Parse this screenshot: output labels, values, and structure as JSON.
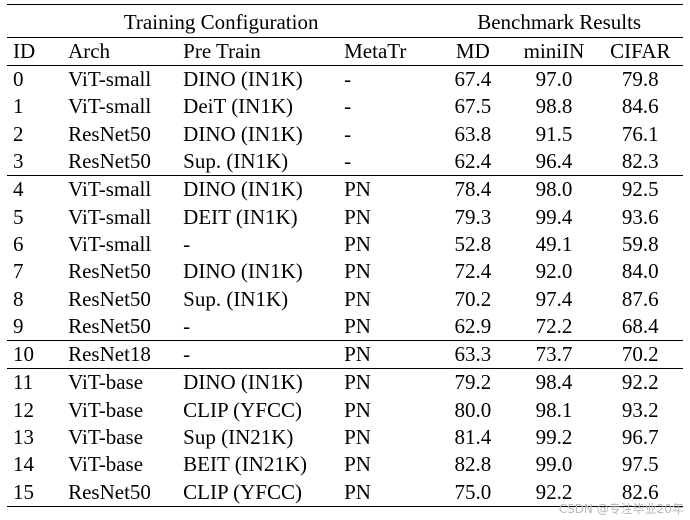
{
  "headers": {
    "group_config": "Training Configuration",
    "group_bench": "Benchmark Results",
    "columns": [
      "ID",
      "Arch",
      "Pre Train",
      "MetaTr",
      "MD",
      "miniIN",
      "CIFAR"
    ]
  },
  "rows": [
    [
      "0",
      "ViT-small",
      "DINO (IN1K)",
      "-",
      "67.4",
      "97.0",
      "79.8"
    ],
    [
      "1",
      "ViT-small",
      "DeiT (IN1K)",
      "-",
      "67.5",
      "98.8",
      "84.6"
    ],
    [
      "2",
      "ResNet50",
      "DINO (IN1K)",
      "-",
      "63.8",
      "91.5",
      "76.1"
    ],
    [
      "3",
      "ResNet50",
      "Sup. (IN1K)",
      "-",
      "62.4",
      "96.4",
      "82.3"
    ],
    [
      "4",
      "ViT-small",
      "DINO (IN1K)",
      "PN",
      "78.4",
      "98.0",
      "92.5"
    ],
    [
      "5",
      "ViT-small",
      "DEIT (IN1K)",
      "PN",
      "79.3",
      "99.4",
      "93.6"
    ],
    [
      "6",
      "ViT-small",
      "-",
      "PN",
      "52.8",
      "49.1",
      "59.8"
    ],
    [
      "7",
      "ResNet50",
      "DINO (IN1K)",
      "PN",
      "72.4",
      "92.0",
      "84.0"
    ],
    [
      "8",
      "ResNet50",
      "Sup. (IN1K)",
      "PN",
      "70.2",
      "97.4",
      "87.6"
    ],
    [
      "9",
      "ResNet50",
      "-",
      "PN",
      "62.9",
      "72.2",
      "68.4"
    ],
    [
      "10",
      "ResNet18",
      "-",
      "PN",
      "63.3",
      "73.7",
      "70.2"
    ],
    [
      "11",
      "ViT-base",
      "DINO (IN1K)",
      "PN",
      "79.2",
      "98.4",
      "92.2"
    ],
    [
      "12",
      "ViT-base",
      "CLIP (YFCC)",
      "PN",
      "80.0",
      "98.1",
      "93.2"
    ],
    [
      "13",
      "ViT-base",
      "Sup (IN21K)",
      "PN",
      "81.4",
      "99.2",
      "96.7"
    ],
    [
      "14",
      "ViT-base",
      "BEIT (IN21K)",
      "PN",
      "82.8",
      "99.0",
      "97.5"
    ],
    [
      "15",
      "ResNet50",
      "CLIP (YFCC)",
      "PN",
      "75.0",
      "92.2",
      "82.6"
    ]
  ],
  "watermark": "CSDN @专注毕业20年"
}
